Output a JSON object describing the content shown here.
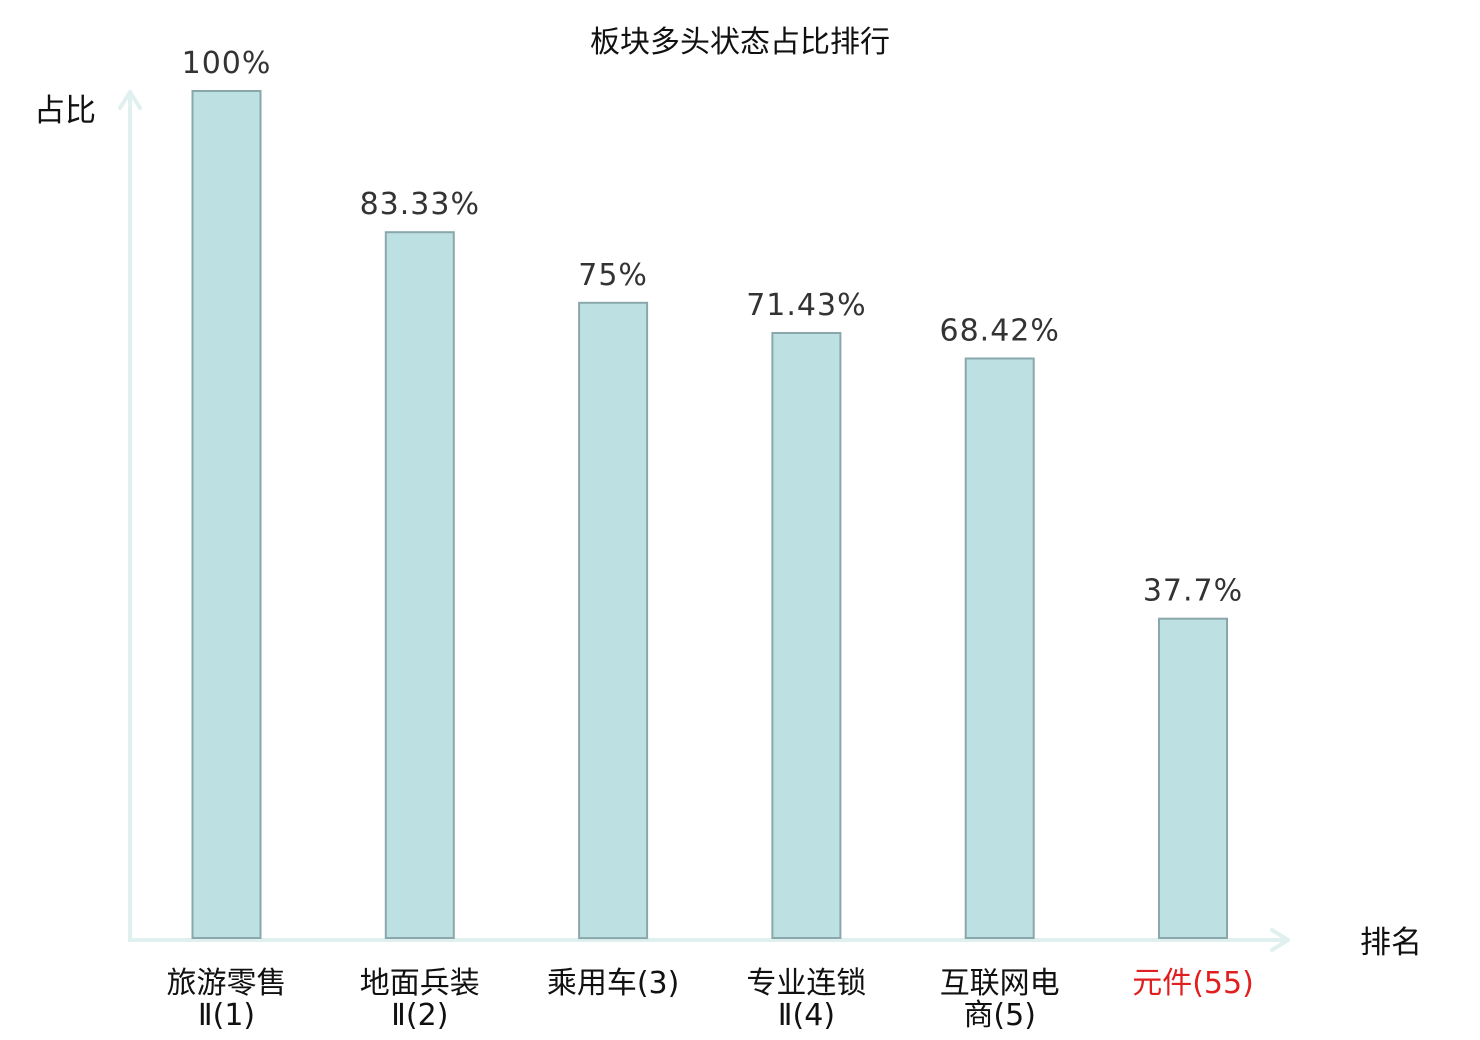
{
  "colors": {
    "bar_fill": "#bde0e3",
    "bar_stroke": "#8aa8ac",
    "axis": "#dff0ee",
    "highlight": "#e02020",
    "text": "#111111",
    "value_text": "#333333"
  },
  "chart_data": {
    "type": "bar",
    "title": "板块多头状态占比排行",
    "xlabel": "排名",
    "ylabel": "占比",
    "ylim": [
      0,
      100
    ],
    "grid": false,
    "legend": "none",
    "categories": [
      {
        "name_lines": [
          "旅游零售",
          "Ⅱ(1)"
        ],
        "value": 100,
        "label": "100%",
        "highlight": false
      },
      {
        "name_lines": [
          "地面兵装",
          "Ⅱ(2)"
        ],
        "value": 83.33,
        "label": "83.33%",
        "highlight": false
      },
      {
        "name_lines": [
          "乘用车(3)"
        ],
        "value": 75,
        "label": "75%",
        "highlight": false
      },
      {
        "name_lines": [
          "专业连锁",
          "Ⅱ(4)"
        ],
        "value": 71.43,
        "label": "71.43%",
        "highlight": false
      },
      {
        "name_lines": [
          "互联网电",
          "商(5)"
        ],
        "value": 68.42,
        "label": "68.42%",
        "highlight": false
      },
      {
        "name_lines": [
          "元件(55)"
        ],
        "value": 37.7,
        "label": "37.7%",
        "highlight": true
      }
    ]
  }
}
